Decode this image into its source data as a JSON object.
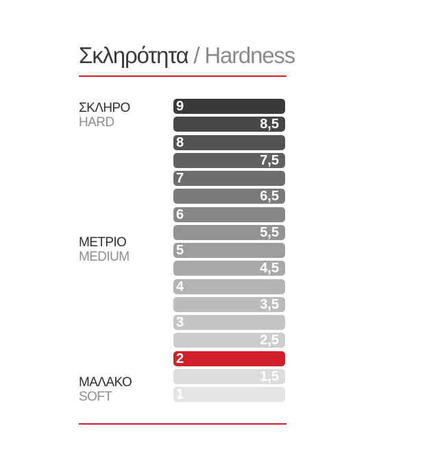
{
  "title": {
    "greek": "Σκληρότητα",
    "separator": " / ",
    "english": "Hardness"
  },
  "labels": {
    "hard": {
      "primary": "ΣΚΛΗΡΟ",
      "secondary": "HARD"
    },
    "medium": {
      "primary": "ΜΕΤΡΙΟ",
      "secondary": "MEDIUM"
    },
    "soft": {
      "primary": "ΜΑΛΑΚΟ",
      "secondary": "SOFT"
    }
  },
  "colors": {
    "accent": "#d0202a",
    "rule": "#d0202a"
  },
  "scale": [
    {
      "label": "9",
      "value": 9,
      "color": "#3a3a3c",
      "selected": false
    },
    {
      "label": "8,5",
      "value": 8.5,
      "color": "#47474a",
      "selected": false
    },
    {
      "label": "8",
      "value": 8,
      "color": "#535356",
      "selected": false
    },
    {
      "label": "7,5",
      "value": 7.5,
      "color": "#606063",
      "selected": false
    },
    {
      "label": "7",
      "value": 7,
      "color": "#6d6d70",
      "selected": false
    },
    {
      "label": "6,5",
      "value": 6.5,
      "color": "#7a7a7d",
      "selected": false
    },
    {
      "label": "6",
      "value": 6,
      "color": "#87878a",
      "selected": false
    },
    {
      "label": "5,5",
      "value": 5.5,
      "color": "#939396",
      "selected": false
    },
    {
      "label": "5",
      "value": 5,
      "color": "#9e9ea1",
      "selected": false
    },
    {
      "label": "4,5",
      "value": 4.5,
      "color": "#a9a9ac",
      "selected": false
    },
    {
      "label": "4",
      "value": 4,
      "color": "#b3b3b6",
      "selected": false
    },
    {
      "label": "3,5",
      "value": 3.5,
      "color": "#bcbcbf",
      "selected": false
    },
    {
      "label": "3",
      "value": 3,
      "color": "#c5c5c8",
      "selected": false
    },
    {
      "label": "2,5",
      "value": 2.5,
      "color": "#cdcdd0",
      "selected": false
    },
    {
      "label": "2",
      "value": 2,
      "color": "#d0202a",
      "selected": true
    },
    {
      "label": "1,5",
      "value": 1.5,
      "color": "#dcdcdf",
      "selected": false
    },
    {
      "label": "1",
      "value": 1,
      "color": "#e4e4e7",
      "selected": false
    }
  ]
}
